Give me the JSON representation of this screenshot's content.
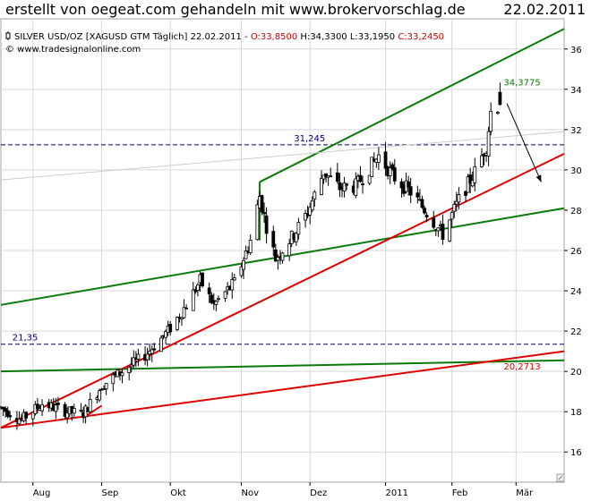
{
  "header": {
    "title": "erstellt von oegeat.com gehandeln mit www.brokervorschlag.de",
    "date": "22.02.2011"
  },
  "legend": {
    "symbol": "SILVER USD/OZ [XAGUSD GTM  Täglich] 22.02.2011",
    "ohlc": [
      {
        "text": " - ",
        "color": "#000000"
      },
      {
        "text": "O:33,8500",
        "color": "#cc0000"
      },
      {
        "text": " H:34,3300",
        "color": "#000000"
      },
      {
        "text": " L:33,1950",
        "color": "#000000"
      },
      {
        "text": " C:33,2450",
        "color": "#cc0000"
      }
    ],
    "copyright": "© www.tradesignalonline.com"
  },
  "colors": {
    "green_line": "#0a7a0a",
    "red_line": "#e00000",
    "hline": "#000080",
    "candle_up": "#ffffff",
    "candle_down": "#000000",
    "grid": "#d8d8d8"
  },
  "chart_data": {
    "type": "candlestick",
    "instrument": "SILVER USD/OZ",
    "y_range": [
      14.5,
      37.5
    ],
    "y_ticks": [
      16,
      18,
      20,
      22,
      24,
      26,
      28,
      30,
      32,
      34,
      36
    ],
    "y_tick_labels": [
      "16",
      "18",
      "20",
      "22",
      "24",
      "26",
      "28",
      "30",
      "32",
      "34",
      "36"
    ],
    "x_range": [
      "2010-07-19",
      "2011-03-22"
    ],
    "x_ticks": [
      {
        "date": "2010-08-02",
        "label": "Aug"
      },
      {
        "date": "2010-09-01",
        "label": "Sep"
      },
      {
        "date": "2010-10-01",
        "label": "Okt"
      },
      {
        "date": "2010-11-01",
        "label": "Nov"
      },
      {
        "date": "2010-12-01",
        "label": "Dez"
      },
      {
        "date": "2011-01-03",
        "label": "2011"
      },
      {
        "date": "2011-02-01",
        "label": "Feb"
      },
      {
        "date": "2011-03-01",
        "label": "Mär"
      }
    ],
    "price_path": [
      [
        "2010-07-19",
        18.2
      ],
      [
        "2010-07-28",
        17.6
      ],
      [
        "2010-08-06",
        18.4
      ],
      [
        "2010-08-17",
        18.0
      ],
      [
        "2010-08-24",
        17.9
      ],
      [
        "2010-09-01",
        19.3
      ],
      [
        "2010-09-10",
        20.0
      ],
      [
        "2010-09-20",
        20.8
      ],
      [
        "2010-09-30",
        22.0
      ],
      [
        "2010-10-08",
        23.3
      ],
      [
        "2010-10-14",
        24.5
      ],
      [
        "2010-10-20",
        23.3
      ],
      [
        "2010-10-29",
        24.4
      ],
      [
        "2010-11-05",
        26.5
      ],
      [
        "2010-11-09",
        28.7
      ],
      [
        "2010-11-12",
        27.2
      ],
      [
        "2010-11-16",
        25.6
      ],
      [
        "2010-11-24",
        26.8
      ],
      [
        "2010-11-30",
        27.9
      ],
      [
        "2010-12-07",
        29.9
      ],
      [
        "2010-12-14",
        29.1
      ],
      [
        "2010-12-21",
        29.2
      ],
      [
        "2010-12-31",
        30.7
      ],
      [
        "2011-01-07",
        29.6
      ],
      [
        "2011-01-14",
        28.9
      ],
      [
        "2011-01-21",
        27.9
      ],
      [
        "2011-01-28",
        26.8
      ],
      [
        "2011-02-04",
        28.5
      ],
      [
        "2011-02-11",
        29.9
      ],
      [
        "2011-02-16",
        31.2
      ],
      [
        "2011-02-18",
        32.9
      ],
      [
        "2011-02-22",
        33.245
      ]
    ],
    "last_candle": {
      "date": "2011-02-22",
      "open": 33.85,
      "high": 34.33,
      "low": 33.195,
      "close": 33.245
    },
    "horizontal_lines": [
      {
        "value": 31.245,
        "label": "31,245",
        "style": "dashed"
      },
      {
        "value": 21.35,
        "label": "21,35",
        "style": "dashed"
      }
    ],
    "trendlines": [
      {
        "name": "lower green channel",
        "color": "green",
        "start": [
          "2010-07-19",
          23.3
        ],
        "end": [
          "2011-03-22",
          28.1
        ]
      },
      {
        "name": "upper green channel",
        "color": "green",
        "start": [
          "2010-11-09",
          29.4
        ],
        "end": [
          "2011-03-22",
          37.0
        ]
      },
      {
        "name": "horizontal green",
        "color": "green",
        "start": [
          "2010-07-19",
          20.0
        ],
        "end": [
          "2011-03-22",
          20.55
        ]
      },
      {
        "name": "steep red support",
        "color": "red",
        "start": [
          "2010-07-19",
          17.2
        ],
        "end": [
          "2011-03-22",
          30.8
        ]
      },
      {
        "name": "shallow red support",
        "color": "red",
        "start": [
          "2010-07-19",
          17.2
        ],
        "end": [
          "2011-03-22",
          21.0
        ]
      },
      {
        "name": "faint grey line",
        "color": "grey",
        "start": [
          "2010-07-19",
          29.5
        ],
        "end": [
          "2011-03-22",
          31.9
        ]
      },
      {
        "name": "support connector",
        "color": "red",
        "start": [
          "2010-08-24",
          17.7
        ],
        "end": [
          "2010-09-01",
          18.3
        ]
      }
    ],
    "annotations": [
      {
        "text": "34,3775",
        "date": "2011-02-22",
        "value": 34.3775,
        "color": "green"
      },
      {
        "text": "20,2713",
        "date": "2011-02-22",
        "value": 20.2713,
        "color": "red"
      }
    ],
    "arrow": {
      "start": [
        "2011-02-25",
        33.3
      ],
      "end": [
        "2011-03-12",
        29.4
      ]
    }
  }
}
